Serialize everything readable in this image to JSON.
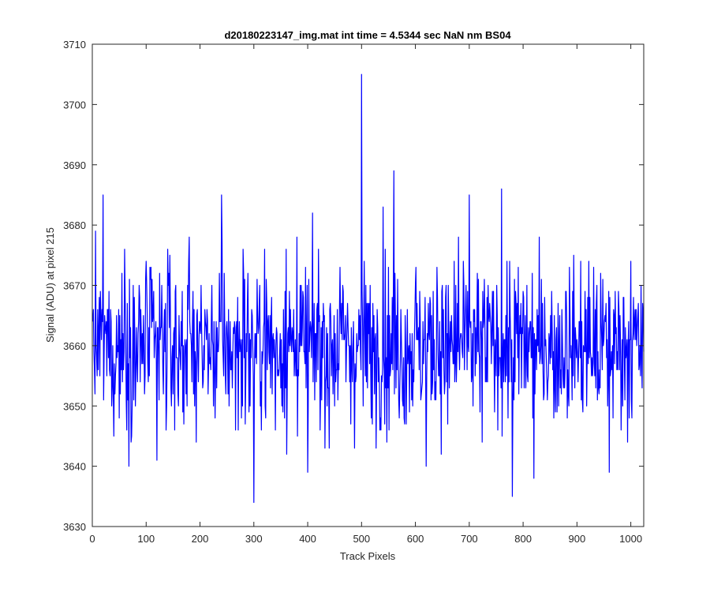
{
  "chart_data": {
    "type": "line",
    "title": "d20180223147_img.mat int time = 4.5344 sec  NaN nm BS04",
    "xlabel": "Track Pixels",
    "ylabel": "Signal (ADU) at pixel 215",
    "xlim": [
      0,
      1024
    ],
    "ylim": [
      3630,
      3710
    ],
    "xticks": [
      0,
      100,
      200,
      300,
      400,
      500,
      600,
      700,
      800,
      900,
      1000
    ],
    "yticks": [
      3630,
      3640,
      3650,
      3660,
      3670,
      3680,
      3690,
      3700,
      3710
    ],
    "grid": false,
    "legend": "none",
    "line_color": "#0000ff",
    "series": [
      {
        "x": [
          1,
          20,
          40,
          60,
          80,
          100,
          120,
          140,
          160,
          180,
          200,
          220,
          240,
          260,
          280,
          300,
          320,
          340,
          360,
          380,
          400,
          420,
          440,
          460,
          480,
          500,
          520,
          540,
          560,
          580,
          600,
          620,
          640,
          660,
          680,
          700,
          720,
          740,
          760,
          780,
          800,
          820,
          840,
          860,
          880,
          900,
          920,
          940,
          960,
          980,
          1000,
          1024
        ],
        "values": [
          3664,
          3685,
          3645,
          3676,
          3650,
          3674,
          3641,
          3676,
          3650,
          3678,
          3663,
          3656,
          3685,
          3653,
          3676,
          3634,
          3676,
          3646,
          3676,
          3678,
          3639,
          3676,
          3643,
          3673,
          3647,
          3705,
          3647,
          3683,
          3689,
          3647,
          3670,
          3640,
          3673,
          3647,
          3678,
          3685,
          3649,
          3663,
          3686,
          3635,
          3669,
          3638,
          3668,
          3649,
          3669,
          3661,
          3668,
          3653,
          3639,
          3665,
          3674,
          3659
        ],
        "min": 3634,
        "max": 3705,
        "mean": 3660
      }
    ]
  }
}
